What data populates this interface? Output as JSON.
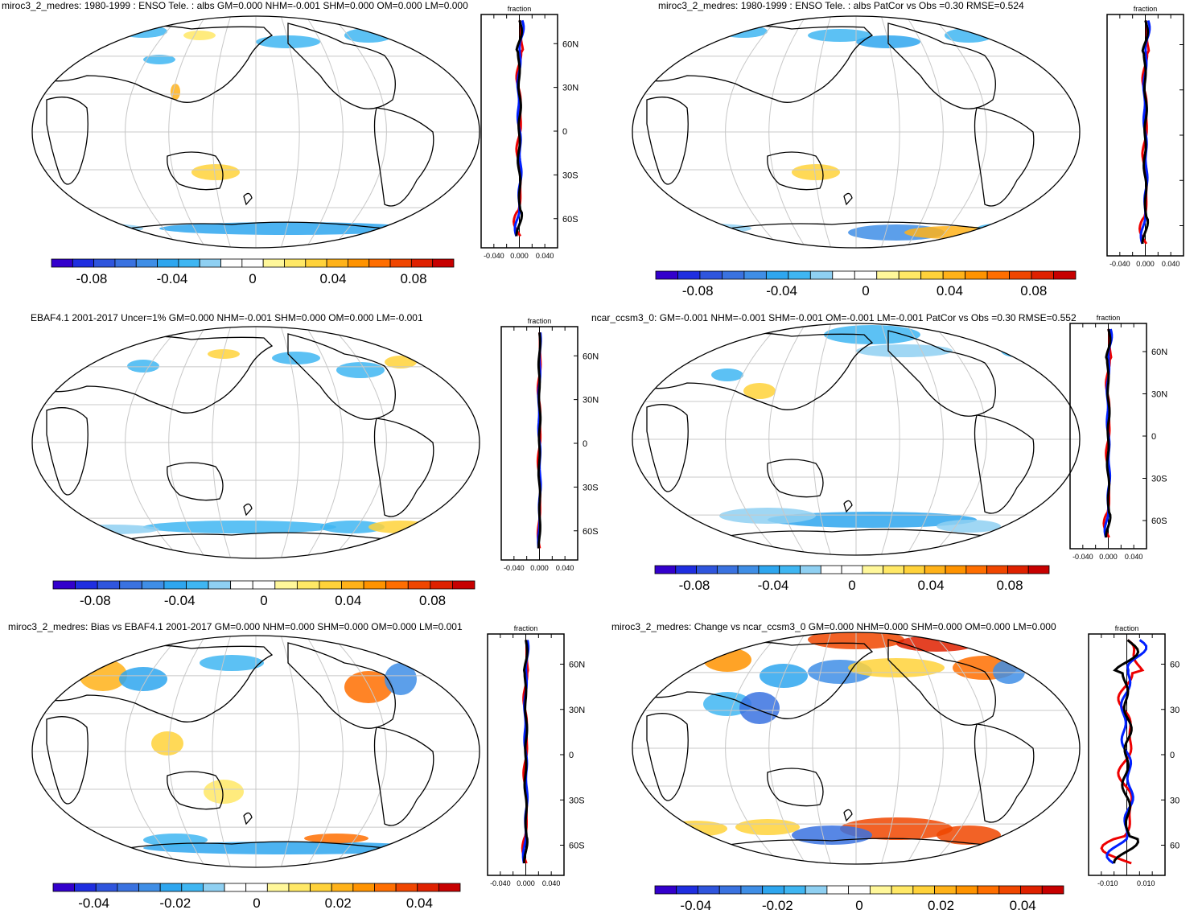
{
  "panels": [
    {
      "title": "miroc3_2_medres: 1980-1999 : ENSO Tele. : albs GM=0.000 NHM=-0.001 SHM=0.000 OM=0.000 LM=0.000",
      "zonal": {
        "title": "fraction",
        "xticks": [
          "-0.040",
          "0.000",
          "0.040"
        ],
        "ylabels": [
          "60N",
          "30N",
          "0",
          "30S",
          "60S"
        ]
      },
      "colorbar": {
        "labels": [
          "-0.08",
          "-0.04",
          "0",
          "0.04",
          "0.08"
        ]
      }
    },
    {
      "title": "miroc3_2_medres: 1980-1999 : ENSO Tele. : albs PatCor vs Obs =0.30 RMSE=0.524",
      "zonal": {
        "title": "fraction",
        "xticks": [
          "-0.040",
          "0.000",
          "0.040"
        ],
        "ylabels": []
      },
      "colorbar": {
        "labels": [
          "-0.08",
          "-0.04",
          "0",
          "0.04",
          "0.08"
        ]
      }
    },
    {
      "title": "EBAF4.1 2001-2017 Uncer=1% GM=0.000 NHM=-0.001 SHM=0.000 OM=0.000 LM=-0.001",
      "zonal": {
        "title": "fraction",
        "xticks": [
          "-0.040",
          "0.000",
          "0.040"
        ],
        "ylabels": [
          "60N",
          "30N",
          "0",
          "30S",
          "60S"
        ]
      },
      "colorbar": {
        "labels": [
          "-0.08",
          "-0.04",
          "0",
          "0.04",
          "0.08"
        ]
      }
    },
    {
      "title": "ncar_ccsm3_0: GM=-0.001 NHM=-0.001 SHM=-0.001 OM=-0.001 LM=-0.001 PatCor vs Obs =0.30 RMSE=0.552",
      "zonal": {
        "title": "fraction",
        "xticks": [
          "-0.040",
          "0.000",
          "0.040"
        ],
        "ylabels": [
          "60N",
          "30N",
          "0",
          "30S",
          "60S"
        ]
      },
      "colorbar": {
        "labels": [
          "-0.08",
          "-0.04",
          "0",
          "0.04",
          "0.08"
        ]
      }
    },
    {
      "title": "miroc3_2_medres: Bias vs EBAF4.1 2001-2017 GM=0.000 NHM=0.000 SHM=0.000 OM=0.000 LM=0.001",
      "zonal": {
        "title": "fraction",
        "xticks": [
          "-0.040",
          "0.000",
          "0.040"
        ],
        "ylabels": [
          "60N",
          "30N",
          "0",
          "30S",
          "60S"
        ]
      },
      "colorbar": {
        "labels": [
          "-0.04",
          "-0.02",
          "0",
          "0.02",
          "0.04"
        ]
      }
    },
    {
      "title": "miroc3_2_medres: Change vs ncar_ccsm3_0 GM=0.000 NHM=0.000 SHM=0.000 OM=0.000 LM=0.000",
      "zonal": {
        "title": "fraction",
        "xticks": [
          "-0.010",
          "0.010"
        ],
        "ylabels": [
          "60",
          "30",
          "0",
          "30",
          "60"
        ]
      },
      "colorbar": {
        "labels": [
          "-0.04",
          "-0.02",
          "0",
          "0.02",
          "0.04"
        ]
      }
    }
  ],
  "colors": {
    "diverging": [
      "#3300cc",
      "#1f2ee0",
      "#2f55dd",
      "#3a72e0",
      "#3f8ee6",
      "#2ea6ef",
      "#3fb6f2",
      "#8fd0f2",
      "#ffffff",
      "#ffffff",
      "#fff79a",
      "#ffe866",
      "#ffd23a",
      "#ffb219",
      "#ff9300",
      "#ff6e00",
      "#f04600",
      "#df2100",
      "#c70000"
    ],
    "land_outline": "#000000",
    "grid": "#c8c8c8",
    "zonal_black": "#000000",
    "zonal_red": "#ee0000",
    "zonal_blue": "#0020ff"
  },
  "chart_data": [
    {
      "type": "heatmap",
      "title": "miroc3_2_medres: 1980-1999 : ENSO Tele. : albs GM=0.000 NHM=-0.001 SHM=0.000 OM=0.000 LM=0.000",
      "projection": "robinson",
      "colorbar_range": [
        -0.1,
        0.1
      ],
      "colorbar_ticks": [
        -0.08,
        -0.04,
        0,
        0.04,
        0.08
      ],
      "zonal_mean": {
        "xlabel": "fraction",
        "xlim": [
          -0.06,
          0.06
        ],
        "xticks": [
          -0.04,
          0.0,
          0.04
        ],
        "ylim": [
          -80,
          80
        ],
        "yticks": [
          60,
          30,
          0,
          -30,
          -60
        ]
      }
    },
    {
      "type": "heatmap",
      "title": "miroc3_2_medres: 1980-1999 : ENSO Tele. : albs PatCor vs Obs =0.30 RMSE=0.524",
      "projection": "robinson",
      "colorbar_range": [
        -0.1,
        0.1
      ],
      "colorbar_ticks": [
        -0.08,
        -0.04,
        0,
        0.04,
        0.08
      ],
      "pattern_correlation": 0.3,
      "rmse": 0.524,
      "zonal_mean": {
        "xlabel": "fraction",
        "xlim": [
          -0.06,
          0.06
        ],
        "xticks": [
          -0.04,
          0.0,
          0.04
        ],
        "ylim": [
          -80,
          80
        ]
      }
    },
    {
      "type": "heatmap",
      "title": "EBAF4.1 2001-2017 Uncer=1% GM=0.000 NHM=-0.001 SHM=0.000 OM=0.000 LM=-0.001",
      "projection": "robinson",
      "colorbar_range": [
        -0.1,
        0.1
      ],
      "colorbar_ticks": [
        -0.08,
        -0.04,
        0,
        0.04,
        0.08
      ],
      "zonal_mean": {
        "xlabel": "fraction",
        "xlim": [
          -0.06,
          0.06
        ],
        "xticks": [
          -0.04,
          0.0,
          0.04
        ],
        "ylim": [
          -80,
          80
        ],
        "yticks": [
          60,
          30,
          0,
          -30,
          -60
        ]
      }
    },
    {
      "type": "heatmap",
      "title": "ncar_ccsm3_0: GM=-0.001 NHM=-0.001 SHM=-0.001 OM=-0.001 LM=-0.001 PatCor vs Obs =0.30 RMSE=0.552",
      "projection": "robinson",
      "colorbar_range": [
        -0.1,
        0.1
      ],
      "colorbar_ticks": [
        -0.08,
        -0.04,
        0,
        0.04,
        0.08
      ],
      "pattern_correlation": 0.3,
      "rmse": 0.552,
      "zonal_mean": {
        "xlabel": "fraction",
        "xlim": [
          -0.06,
          0.06
        ],
        "xticks": [
          -0.04,
          0.0,
          0.04
        ],
        "ylim": [
          -80,
          80
        ],
        "yticks": [
          60,
          30,
          0,
          -30,
          -60
        ]
      }
    },
    {
      "type": "heatmap",
      "title": "miroc3_2_medres: Bias vs EBAF4.1 2001-2017 GM=0.000 NHM=0.000 SHM=0.000 OM=0.000 LM=0.001",
      "projection": "robinson",
      "colorbar_range": [
        -0.05,
        0.05
      ],
      "colorbar_ticks": [
        -0.04,
        -0.02,
        0,
        0.02,
        0.04
      ],
      "zonal_mean": {
        "xlabel": "fraction",
        "xlim": [
          -0.06,
          0.06
        ],
        "xticks": [
          -0.04,
          0.0,
          0.04
        ],
        "ylim": [
          -80,
          80
        ],
        "yticks": [
          60,
          30,
          0,
          -30,
          -60
        ]
      }
    },
    {
      "type": "heatmap",
      "title": "miroc3_2_medres: Change vs ncar_ccsm3_0 GM=0.000 NHM=0.000 SHM=0.000 OM=0.000 LM=0.000",
      "projection": "robinson",
      "colorbar_range": [
        -0.05,
        0.05
      ],
      "colorbar_ticks": [
        -0.04,
        -0.02,
        0,
        0.02,
        0.04
      ],
      "zonal_mean": {
        "xlabel": "fraction",
        "xlim": [
          -0.02,
          0.02
        ],
        "xticks": [
          -0.01,
          0.01
        ],
        "ylim": [
          -80,
          80
        ],
        "yticks": [
          60,
          30,
          0,
          -30,
          -60
        ]
      }
    }
  ]
}
